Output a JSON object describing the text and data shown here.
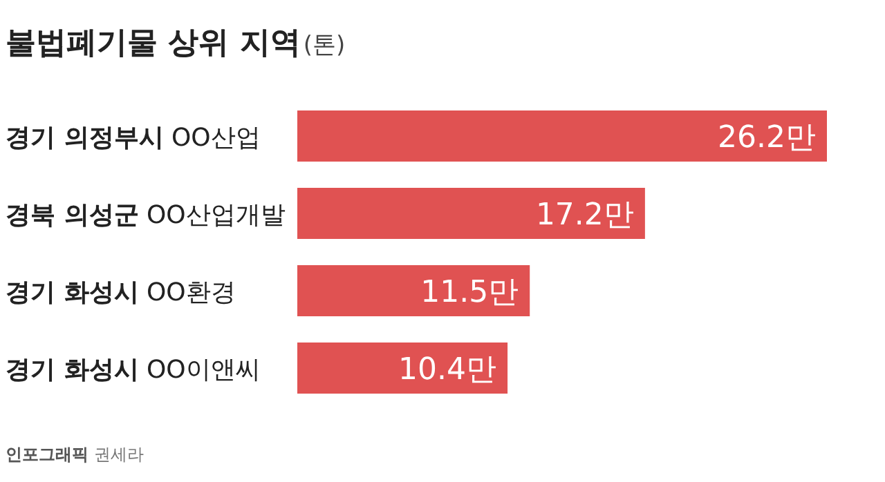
{
  "chart_data": {
    "type": "bar",
    "orientation": "horizontal",
    "title": "불법폐기물 상위 지역",
    "subtitle": "(톤)",
    "categories": [
      "**경기 의정부시** OO산업",
      "**경북 의성군** OO산업개발",
      "**경기 화성시** OO환경",
      "**경기 화성시** OO이앤씨"
    ],
    "values": [
      26.2,
      17.2,
      11.5,
      10.4
    ],
    "value_labels": [
      "26.2만",
      "17.2만",
      "11.5만",
      "10.4만"
    ],
    "color": "#e05252",
    "annotations": [
      "**인포그래픽** 권세라"
    ]
  }
}
